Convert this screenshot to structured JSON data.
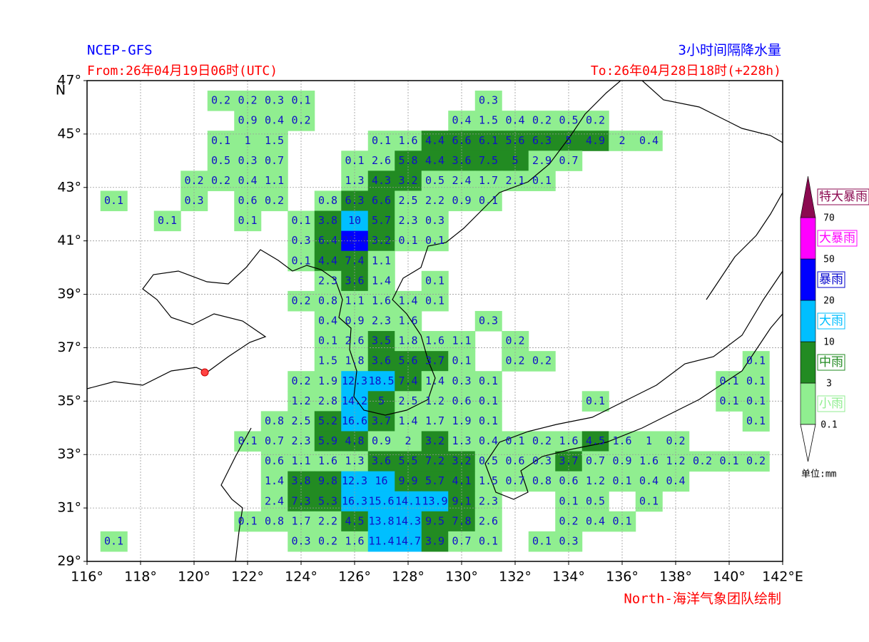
{
  "header": {
    "model": "NCEP-GFS",
    "title": "3小时间隔降水量",
    "from": "From:26年04月19日06时(UTC)",
    "to": "To:26年04月28日18时(+228h)",
    "credit": "North-海洋气象团队绘制"
  },
  "map": {
    "xlim": [
      116,
      142
    ],
    "ylim": [
      29,
      47
    ],
    "xticks": [
      {
        "value": 116,
        "label": "116°"
      },
      {
        "value": 118,
        "label": "118°"
      },
      {
        "value": 120,
        "label": "120°"
      },
      {
        "value": 122,
        "label": "122°"
      },
      {
        "value": 124,
        "label": "124°"
      },
      {
        "value": 126,
        "label": "126°"
      },
      {
        "value": 128,
        "label": "128°"
      },
      {
        "value": 130,
        "label": "130°"
      },
      {
        "value": 132,
        "label": "132°"
      },
      {
        "value": 134,
        "label": "134°"
      },
      {
        "value": 136,
        "label": "136°"
      },
      {
        "value": 138,
        "label": "138°"
      },
      {
        "value": 140,
        "label": "140°"
      },
      {
        "value": 142,
        "label": "142°E"
      }
    ],
    "yticks": [
      {
        "value": 29,
        "label": "29°"
      },
      {
        "value": 31,
        "label": "31°"
      },
      {
        "value": 33,
        "label": "33°"
      },
      {
        "value": 35,
        "label": "35°"
      },
      {
        "value": 37,
        "label": "37°"
      },
      {
        "value": 39,
        "label": "39°"
      },
      {
        "value": 41,
        "label": "41°"
      },
      {
        "value": 43,
        "label": "43°"
      },
      {
        "value": 45,
        "label": "45°"
      },
      {
        "value": 47,
        "label": "47°"
      }
    ],
    "y_unit": "N",
    "grid": true,
    "rows": [
      {
        "lat": 46.25,
        "lons": [
          121,
          122,
          123,
          124,
          131
        ],
        "values": [
          0.2,
          0.2,
          0.3,
          0.1,
          0.3
        ]
      },
      {
        "lat": 45.5,
        "lons": [
          122,
          123,
          124,
          130,
          131,
          132,
          133,
          134,
          135
        ],
        "values": [
          0.9,
          0.4,
          0.2,
          0.4,
          1.5,
          0.4,
          0.2,
          0.5,
          0.2
        ]
      },
      {
        "lat": 44.75,
        "lons": [
          121,
          122,
          123,
          127,
          128,
          129,
          130,
          131,
          132,
          133,
          134,
          135,
          136,
          137
        ],
        "values": [
          0.1,
          1.0,
          1.5,
          0.1,
          1.6,
          4.4,
          6.6,
          6.1,
          5.6,
          6.3,
          5.0,
          4.9,
          2.0,
          0.4
        ]
      },
      {
        "lat": 44,
        "lons": [
          121,
          122,
          123,
          126,
          127,
          128,
          129,
          130,
          131,
          132,
          133,
          134
        ],
        "values": [
          0.5,
          0.3,
          0.7,
          0.1,
          2.6,
          5.8,
          4.4,
          3.6,
          7.5,
          5.0,
          2.9,
          0.7
        ]
      },
      {
        "lat": 43.25,
        "lons": [
          120,
          121,
          122,
          123,
          126,
          127,
          128,
          129,
          130,
          131,
          132,
          133
        ],
        "values": [
          0.2,
          0.2,
          0.4,
          1.1,
          1.3,
          4.3,
          3.2,
          0.5,
          2.4,
          1.7,
          2.1,
          0.1
        ]
      },
      {
        "lat": 42.5,
        "lons": [
          117,
          120,
          122,
          123,
          125,
          126,
          127,
          128,
          129,
          130,
          131
        ],
        "values": [
          0.1,
          0.3,
          0.6,
          0.2,
          0.8,
          6.3,
          6.6,
          2.5,
          2.2,
          0.9,
          0.1
        ]
      },
      {
        "lat": 41.75,
        "lons": [
          119,
          122,
          124,
          125,
          126,
          127,
          128,
          129
        ],
        "values": [
          0.1,
          0.1,
          0.1,
          3.8,
          10.0,
          5.7,
          2.3,
          0.3
        ]
      },
      {
        "lat": 41,
        "lons": [
          124,
          125,
          126,
          127,
          128,
          129
        ],
        "values": [
          0.3,
          6.4,
          21.4,
          3.2,
          0.1,
          0.1
        ]
      },
      {
        "lat": 40.25,
        "lons": [
          124,
          125,
          126,
          127
        ],
        "values": [
          0.1,
          4.4,
          7.4,
          1.1
        ]
      },
      {
        "lat": 39.5,
        "lons": [
          125,
          126,
          127,
          129
        ],
        "values": [
          2.3,
          3.6,
          1.4,
          0.1
        ]
      },
      {
        "lat": 38.75,
        "lons": [
          124,
          125,
          126,
          127,
          128,
          129
        ],
        "values": [
          0.2,
          0.8,
          1.1,
          1.6,
          1.4,
          0.1
        ]
      },
      {
        "lat": 38,
        "lons": [
          125,
          126,
          127,
          128,
          131
        ],
        "values": [
          0.4,
          0.9,
          2.3,
          1.6,
          0.3
        ]
      },
      {
        "lat": 37.25,
        "lons": [
          125,
          126,
          127,
          128,
          129,
          130,
          132
        ],
        "values": [
          0.1,
          2.6,
          3.5,
          1.8,
          1.6,
          1.1,
          0.2
        ]
      },
      {
        "lat": 36.5,
        "lons": [
          125,
          126,
          127,
          128,
          129,
          130,
          132,
          133,
          141
        ],
        "values": [
          1.5,
          1.8,
          3.6,
          5.6,
          3.7,
          0.1,
          0.2,
          0.2,
          0.1
        ]
      },
      {
        "lat": 35.75,
        "lons": [
          124,
          125,
          126,
          127,
          128,
          129,
          130,
          131,
          140,
          141
        ],
        "values": [
          0.2,
          1.9,
          12.3,
          18.5,
          7.4,
          1.4,
          0.3,
          0.1,
          0.1,
          0.1
        ]
      },
      {
        "lat": 35,
        "lons": [
          124,
          125,
          126,
          127,
          128,
          129,
          130,
          131,
          135,
          140,
          141
        ],
        "values": [
          1.2,
          2.8,
          14.2,
          5.0,
          2.5,
          1.2,
          0.6,
          0.1,
          0.1,
          0.1,
          0.1
        ]
      },
      {
        "lat": 34.25,
        "lons": [
          123,
          124,
          125,
          126,
          127,
          128,
          129,
          130,
          131,
          141
        ],
        "values": [
          0.8,
          2.5,
          5.2,
          16.6,
          3.7,
          1.4,
          1.7,
          1.9,
          0.1,
          0.1
        ]
      },
      {
        "lat": 33.5,
        "lons": [
          122,
          123,
          124,
          125,
          126,
          127,
          128,
          129,
          130,
          131,
          132,
          133,
          134,
          135,
          136,
          137,
          138
        ],
        "values": [
          0.1,
          0.7,
          2.3,
          5.9,
          4.8,
          0.9,
          2.0,
          3.2,
          1.3,
          0.4,
          0.1,
          0.2,
          1.6,
          4.5,
          1.6,
          1.0,
          0.2
        ]
      },
      {
        "lat": 32.75,
        "lons": [
          123,
          124,
          125,
          126,
          127,
          128,
          129,
          130,
          131,
          132,
          133,
          134,
          135,
          136,
          137,
          138,
          139,
          140,
          141
        ],
        "values": [
          0.6,
          1.1,
          1.6,
          1.3,
          3.6,
          5.5,
          7.2,
          3.2,
          0.5,
          0.6,
          0.3,
          3.7,
          0.7,
          0.9,
          1.6,
          1.2,
          0.2,
          0.1,
          0.2
        ]
      },
      {
        "lat": 32,
        "lons": [
          123,
          124,
          125,
          126,
          127,
          128,
          129,
          130,
          131,
          132,
          133,
          134,
          135,
          136,
          137,
          138
        ],
        "values": [
          1.4,
          3.8,
          9.8,
          12.3,
          16.0,
          9.9,
          5.7,
          4.1,
          1.5,
          0.7,
          0.8,
          0.6,
          1.2,
          0.1,
          0.4,
          0.4
        ]
      },
      {
        "lat": 31.25,
        "lons": [
          123,
          124,
          125,
          126,
          127,
          128,
          129,
          130,
          131,
          134,
          135,
          137
        ],
        "values": [
          2.4,
          7.3,
          5.3,
          16.3,
          15.6,
          14.1,
          13.9,
          9.1,
          2.3,
          0.1,
          0.5,
          0.1
        ]
      },
      {
        "lat": 30.5,
        "lons": [
          122,
          123,
          124,
          125,
          126,
          127,
          128,
          129,
          130,
          131,
          134,
          135,
          136
        ],
        "values": [
          0.1,
          0.8,
          1.7,
          2.2,
          4.5,
          13.8,
          14.3,
          9.5,
          7.8,
          2.6,
          0.2,
          0.4,
          0.1
        ]
      },
      {
        "lat": 29.75,
        "lons": [
          117,
          124,
          125,
          126,
          127,
          128,
          129,
          130,
          131,
          133,
          134
        ],
        "values": [
          0.1,
          0.3,
          0.2,
          1.6,
          11.4,
          14.7,
          3.9,
          0.7,
          0.1,
          0.1,
          0.3
        ]
      }
    ]
  },
  "legend": {
    "categories": [
      "小雨",
      "中雨",
      "大雨",
      "暴雨",
      "大暴雨",
      "特大暴雨"
    ],
    "levels": [
      0.1,
      3,
      10,
      20,
      50,
      70
    ],
    "colors": [
      "#90ee90",
      "#228b22",
      "#00bfff",
      "#0000ff",
      "#ff00ff",
      "#8b0a50"
    ],
    "label_colors": [
      "#90ee90",
      "#228b22",
      "#00bfff",
      "#0000cd",
      "#ff00ff",
      "#8b0a50"
    ],
    "unit": "单位:mm"
  }
}
